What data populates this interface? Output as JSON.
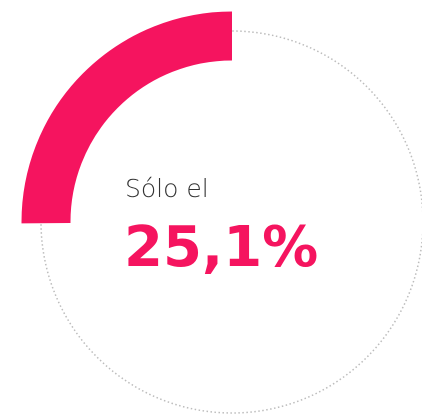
{
  "chart_data": {
    "type": "donut",
    "title": "Sólo el",
    "values": [
      25.1
    ],
    "value_labels": [
      "25,1%"
    ],
    "color": "#f5145f"
  }
}
